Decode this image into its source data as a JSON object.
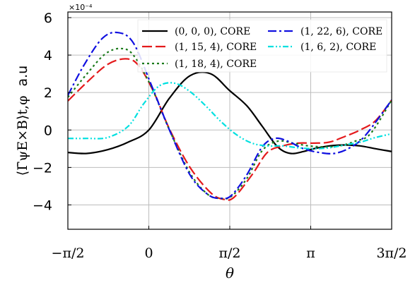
{
  "chart_data": {
    "type": "line",
    "xlabel": "θ",
    "ylabel_math": "⟨Γ̄ψE×B⟩t,φ",
    "ylabel_unit": "a.u",
    "y_multiplier_label": "×10⁻⁴",
    "xlim": [
      -1.5708,
      4.7124
    ],
    "ylim": [
      -5.3,
      6.3
    ],
    "x_ticks": [
      {
        "value": -1.5708,
        "label": "−π/2"
      },
      {
        "value": 0,
        "label": "0"
      },
      {
        "value": 1.5708,
        "label": "π/2"
      },
      {
        "value": 3.1416,
        "label": "π"
      },
      {
        "value": 4.7124,
        "label": "3π/2"
      }
    ],
    "y_ticks": [
      {
        "value": 6,
        "label": "6"
      },
      {
        "value": 4,
        "label": "4"
      },
      {
        "value": 2,
        "label": "2"
      },
      {
        "value": 0,
        "label": "0"
      },
      {
        "value": -2,
        "label": "−2"
      },
      {
        "value": -4,
        "label": "−4"
      }
    ],
    "grid": true,
    "legend_placement": "top-right",
    "series": [
      {
        "name": "(0, 0, 0), CORE",
        "color": "#000000",
        "dash": "",
        "x": [
          -1.5708,
          -1.2,
          -0.8,
          -0.4,
          0,
          0.4,
          0.8,
          1.2,
          1.57,
          1.9,
          2.2,
          2.5,
          2.75,
          3.0,
          3.2,
          3.5,
          3.8,
          4.1,
          4.4,
          4.7124
        ],
        "y": [
          -1.2,
          -1.25,
          -1.05,
          -0.65,
          0.0,
          1.7,
          2.9,
          3.0,
          2.1,
          1.3,
          0.2,
          -0.9,
          -1.25,
          -1.15,
          -1.0,
          -0.85,
          -0.8,
          -0.85,
          -1.0,
          -1.15
        ]
      },
      {
        "name": "(1, 15, 4), CORE",
        "color": "#e41a1c",
        "dash": "14 5",
        "x": [
          -1.5708,
          -1.2,
          -0.8,
          -0.45,
          -0.2,
          0.1,
          0.4,
          0.8,
          1.2,
          1.45,
          1.65,
          2.0,
          2.3,
          2.6,
          2.9,
          3.2,
          3.5,
          3.8,
          4.1,
          4.4,
          4.7124
        ],
        "y": [
          1.55,
          2.55,
          3.5,
          3.8,
          3.45,
          2.0,
          0.05,
          -2.0,
          -3.35,
          -3.7,
          -3.6,
          -2.4,
          -1.2,
          -0.85,
          -0.7,
          -0.7,
          -0.65,
          -0.35,
          0.0,
          0.5,
          1.6
        ]
      },
      {
        "name": "(1, 18, 4), CORE",
        "color": "#1a7a1a",
        "dash": "3 4",
        "x": [
          -1.5708,
          -1.2,
          -0.85,
          -0.55,
          -0.3,
          0.05,
          0.4,
          0.8,
          1.15,
          1.4,
          1.6,
          1.9,
          2.2,
          2.5,
          2.8,
          3.1,
          3.4,
          3.7,
          4.0,
          4.3,
          4.7124
        ],
        "y": [
          1.75,
          3.0,
          4.05,
          4.35,
          4.0,
          2.3,
          0.0,
          -2.3,
          -3.45,
          -3.65,
          -3.55,
          -2.6,
          -1.1,
          -0.6,
          -0.7,
          -0.85,
          -0.9,
          -0.85,
          -0.6,
          -0.2,
          1.6
        ]
      },
      {
        "name": "(1, 22, 6), CORE",
        "color": "#1010e0",
        "dash": "12 4 3 4",
        "x": [
          -1.5708,
          -1.25,
          -0.9,
          -0.6,
          -0.3,
          0.05,
          0.4,
          0.8,
          1.15,
          1.4,
          1.6,
          1.9,
          2.2,
          2.45,
          2.7,
          3.0,
          3.3,
          3.6,
          3.9,
          4.2,
          4.7124
        ],
        "y": [
          1.85,
          3.5,
          4.9,
          5.2,
          4.65,
          2.4,
          0.0,
          -2.4,
          -3.45,
          -3.65,
          -3.5,
          -2.4,
          -0.9,
          -0.45,
          -0.6,
          -1.0,
          -1.2,
          -1.25,
          -0.95,
          -0.3,
          1.6
        ]
      },
      {
        "name": "(1, 6, 2), CORE",
        "color": "#00e0e0",
        "dash": "8 3 2 3 2 3",
        "x": [
          -1.5708,
          -1.2,
          -0.8,
          -0.4,
          -0.1,
          0.2,
          0.5,
          0.8,
          1.1,
          1.4,
          1.7,
          2.0,
          2.3,
          2.6,
          2.9,
          3.2,
          3.5,
          3.8,
          4.1,
          4.4,
          4.7124
        ],
        "y": [
          -0.45,
          -0.45,
          -0.4,
          0.2,
          1.4,
          2.35,
          2.5,
          2.05,
          1.3,
          0.45,
          -0.25,
          -0.7,
          -0.85,
          -0.85,
          -0.95,
          -1.0,
          -0.95,
          -0.8,
          -0.65,
          -0.4,
          -0.2
        ]
      }
    ]
  }
}
